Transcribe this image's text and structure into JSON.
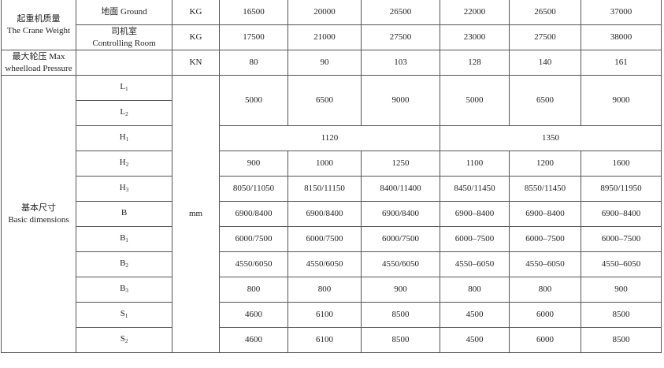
{
  "weight": {
    "label_cn": "起重机质量",
    "label_en": "The Crane Weight",
    "ground": {
      "label": "地面 Ground",
      "unit": "KG",
      "values": [
        "16500",
        "20000",
        "26500",
        "22000",
        "26500",
        "37000"
      ]
    },
    "cab": {
      "label_cn": "司机室",
      "label_en": "Controlling Room",
      "unit": "KG",
      "values": [
        "17500",
        "21000",
        "27500",
        "23000",
        "27500",
        "38000"
      ]
    }
  },
  "pressure": {
    "label_cn": "最大轮压 Max",
    "label_en": "wheelload Pressure",
    "unit": "KN",
    "values": [
      "80",
      "90",
      "103",
      "128",
      "140",
      "161"
    ]
  },
  "dimensions": {
    "label_cn": "基本尺寸",
    "label_en": "Basic dimensions",
    "unit": "mm",
    "L1": {
      "sym": "L",
      "sub": "1"
    },
    "L2": {
      "sym": "L",
      "sub": "2"
    },
    "L_values": [
      "5000",
      "6500",
      "9000",
      "5000",
      "6500",
      "9000"
    ],
    "H1": {
      "sym": "H",
      "sub": "1",
      "values": [
        "1120",
        "1350"
      ]
    },
    "rows": [
      {
        "sym": "H",
        "sub": "2",
        "values": [
          "900",
          "1000",
          "1250",
          "1100",
          "1200",
          "1600"
        ]
      },
      {
        "sym": "H",
        "sub": "3",
        "values": [
          "8050/11050",
          "8150/11150",
          "8400/11400",
          "8450/11450",
          "8550/11450",
          "8950/11950"
        ]
      },
      {
        "sym": "B",
        "sub": "",
        "values": [
          "6900/8400",
          "6900/8400",
          "6900/8400",
          "6900–8400",
          "6900–8400",
          "6900–8400"
        ]
      },
      {
        "sym": "B",
        "sub": "1",
        "values": [
          "6000/7500",
          "6000/7500",
          "6000/7500",
          "6000–7500",
          "6000–7500",
          "6000–7500"
        ]
      },
      {
        "sym": "B",
        "sub": "2",
        "values": [
          "4550/6050",
          "4550/6050",
          "4550/6050",
          "4550–6050",
          "4550–6050",
          "4550–6050"
        ]
      },
      {
        "sym": "B",
        "sub": "3",
        "values": [
          "800",
          "800",
          "900",
          "800",
          "800",
          "900"
        ]
      },
      {
        "sym": "S",
        "sub": "1",
        "values": [
          "4600",
          "6100",
          "8500",
          "4500",
          "6000",
          "8500"
        ]
      },
      {
        "sym": "S",
        "sub": "2",
        "values": [
          "4600",
          "6100",
          "8500",
          "4500",
          "6000",
          "8500"
        ]
      }
    ]
  }
}
